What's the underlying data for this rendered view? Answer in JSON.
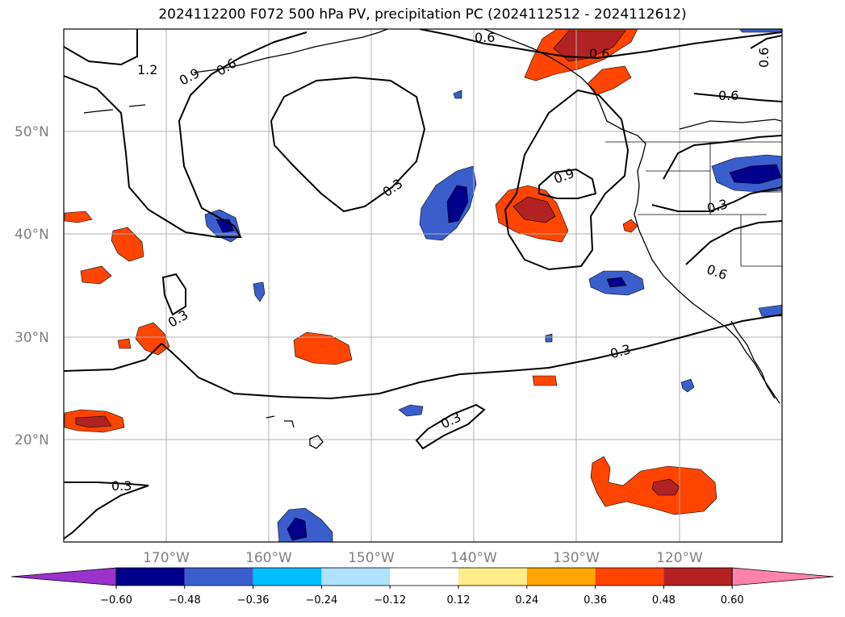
{
  "title": "2024112200 F072 500 hPa PV, precipitation PC (2024112512 - 2024112612)",
  "map": {
    "lat_labels": [
      "50°N",
      "40°N",
      "30°N",
      "20°N"
    ],
    "lon_labels": [
      "170°W",
      "160°W",
      "150°W",
      "140°W",
      "130°W",
      "120°W"
    ],
    "gridlines": true,
    "lat_range": [
      10,
      60
    ],
    "lon_range": [
      -180,
      -110
    ]
  },
  "pv_contour_labels": [
    "1.2",
    "0.9",
    "0.6",
    "0.6",
    "0.6",
    "0.6",
    "0.6",
    "0.9",
    "0.3",
    "0.3",
    "0.3",
    "0.6",
    "0.3",
    "0.3",
    "0.3"
  ],
  "colorbar": {
    "colors": [
      "#9a32cd",
      "#00008b",
      "#3a5fcd",
      "#00bfff",
      "#b0e2ff",
      "#ffffff",
      "#ffec8b",
      "#ffa500",
      "#ff4500",
      "#b22222",
      "#ff82ab"
    ],
    "ticks": [
      "−0.60",
      "−0.48",
      "−0.36",
      "−0.24",
      "−0.12",
      "0.12",
      "0.24",
      "0.36",
      "0.48",
      "0.60"
    ]
  }
}
